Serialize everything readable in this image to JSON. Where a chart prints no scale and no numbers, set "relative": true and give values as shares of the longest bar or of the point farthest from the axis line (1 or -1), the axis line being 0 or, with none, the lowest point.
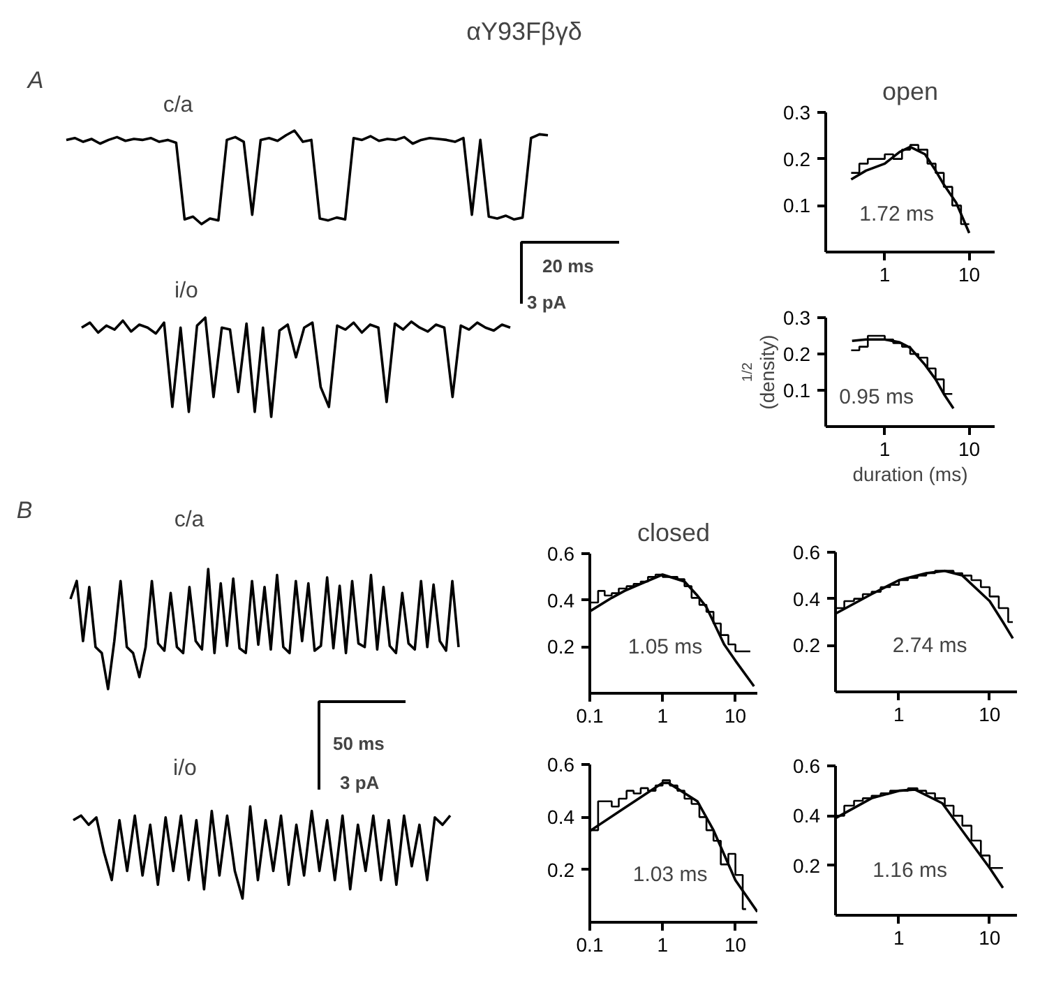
{
  "chart_data": [
    {
      "type": "other",
      "title": "αY93Fβγδ"
    },
    {
      "type": "line",
      "relative": true,
      "annotations": [
        "A",
        "c/a"
      ],
      "categories": [
        null,
        null,
        null,
        null,
        null,
        null,
        null,
        null,
        null,
        null,
        null,
        null,
        null,
        null,
        null,
        null,
        null,
        null,
        null,
        null,
        null,
        null,
        null,
        null,
        null,
        null,
        null,
        null,
        null,
        null,
        null,
        null,
        null,
        null,
        null,
        null,
        null,
        null,
        null,
        null,
        null,
        null,
        null,
        null,
        null,
        null,
        null,
        null,
        null,
        null,
        null,
        null,
        null,
        null,
        null,
        null,
        null,
        null
      ],
      "series": [
        {
          "color": "#000000",
          "values": [
            0.9,
            0.92,
            0.88,
            0.91,
            0.86,
            0.9,
            0.93,
            0.89,
            0.91,
            0.9,
            0.92,
            0.88,
            0.9,
            0.87,
            0.05,
            0.08,
            0.0,
            0.06,
            0.04,
            0.9,
            0.93,
            0.88,
            0.1,
            0.9,
            0.92,
            0.89,
            0.95,
            1.0,
            0.88,
            0.9,
            0.06,
            0.04,
            0.07,
            0.05,
            0.92,
            0.9,
            0.94,
            0.89,
            0.91,
            0.9,
            0.93,
            0.86,
            0.9,
            0.92,
            0.91,
            0.9,
            0.88,
            0.92,
            0.1,
            0.9,
            0.08,
            0.06,
            0.09,
            0.05,
            0.07,
            0.92,
            0.96,
            0.95
          ]
        }
      ]
    },
    {
      "type": "line",
      "title": "open",
      "log": "x",
      "xlim": [
        0.2,
        20
      ],
      "ylim": [
        0,
        0.3
      ],
      "xticks": [
        1,
        10
      ],
      "yticks": [
        0.1,
        0.2,
        0.3
      ],
      "annotations": [
        "1.72 ms"
      ],
      "series": [
        {
          "type": "step",
          "color": "#000000",
          "x": [
            0.4,
            0.5,
            0.63,
            0.8,
            1,
            1.26,
            1.6,
            2,
            2.5,
            3.2,
            4,
            5,
            6.3,
            8,
            10
          ],
          "values": [
            0.17,
            0.19,
            0.2,
            0.2,
            0.21,
            0.2,
            0.22,
            0.23,
            0.22,
            0.19,
            0.17,
            0.14,
            0.1,
            0.06,
            0.06
          ]
        },
        {
          "type": "line",
          "color": "#000000",
          "x": [
            0.4,
            0.6,
            1,
            1.5,
            2,
            3,
            4,
            5,
            7,
            10
          ],
          "values": [
            0.156,
            0.175,
            0.19,
            0.215,
            0.226,
            0.21,
            0.175,
            0.145,
            0.106,
            0.041
          ]
        }
      ]
    },
    {
      "type": "line",
      "relative": true,
      "annotations": [
        "i/o",
        "20 ms",
        "3 pA"
      ],
      "categories": [
        null,
        null,
        null,
        null,
        null,
        null,
        null,
        null,
        null,
        null,
        null,
        null,
        null,
        null,
        null,
        null,
        null,
        null,
        null,
        null,
        null,
        null,
        null,
        null,
        null,
        null,
        null,
        null,
        null,
        null,
        null,
        null,
        null,
        null,
        null,
        null,
        null,
        null,
        null,
        null,
        null,
        null,
        null,
        null,
        null,
        null,
        null,
        null,
        null,
        null,
        null,
        null,
        null
      ],
      "series": [
        {
          "color": "#000000",
          "values": [
            0.9,
            0.95,
            0.85,
            0.92,
            0.88,
            0.97,
            0.86,
            0.93,
            0.9,
            0.84,
            0.95,
            0.1,
            0.9,
            0.05,
            0.92,
            1.0,
            0.2,
            0.9,
            0.88,
            0.25,
            0.94,
            0.05,
            0.9,
            0.0,
            0.87,
            0.93,
            0.6,
            0.9,
            0.95,
            0.3,
            0.1,
            0.92,
            0.88,
            0.95,
            0.85,
            0.93,
            0.9,
            0.15,
            0.94,
            0.88,
            0.96,
            0.9,
            0.86,
            0.93,
            0.9,
            0.2,
            0.92,
            0.88,
            0.95,
            0.9,
            0.87,
            0.93,
            0.9
          ]
        }
      ]
    },
    {
      "type": "line",
      "xlabel": "duration (ms)",
      "ylabel": "(density)$^{1/2}$",
      "log": "x",
      "xlim": [
        0.2,
        20
      ],
      "ylim": [
        0,
        0.3
      ],
      "xticks": [
        1,
        10
      ],
      "yticks": [
        0.1,
        0.2,
        0.3
      ],
      "annotations": [
        "0.95 ms"
      ],
      "series": [
        {
          "type": "step",
          "color": "#000000",
          "x": [
            0.4,
            0.5,
            0.63,
            0.8,
            1,
            1.26,
            1.6,
            2,
            2.5,
            3.2,
            4,
            5,
            6.3
          ],
          "values": [
            0.21,
            0.22,
            0.25,
            0.25,
            0.24,
            0.23,
            0.22,
            0.2,
            0.19,
            0.16,
            0.13,
            0.09,
            0.09
          ]
        },
        {
          "type": "line",
          "color": "#000000",
          "x": [
            0.41,
            0.6,
            1,
            1.5,
            2,
            3,
            4,
            5,
            6.5
          ],
          "values": [
            0.236,
            0.24,
            0.24,
            0.232,
            0.217,
            0.17,
            0.13,
            0.09,
            0.05
          ]
        }
      ]
    },
    {
      "type": "line",
      "relative": true,
      "annotations": [
        "B",
        "c/a"
      ],
      "categories": [
        null,
        null,
        null,
        null,
        null,
        null,
        null,
        null,
        null,
        null,
        null,
        null,
        null,
        null,
        null,
        null,
        null,
        null,
        null,
        null,
        null,
        null,
        null,
        null,
        null,
        null,
        null,
        null,
        null,
        null,
        null,
        null,
        null,
        null,
        null,
        null,
        null,
        null,
        null,
        null,
        null,
        null,
        null,
        null,
        null,
        null,
        null,
        null,
        null,
        null,
        null,
        null,
        null,
        null,
        null,
        null,
        null,
        null,
        null,
        null,
        null,
        null,
        null
      ],
      "series": [
        {
          "color": "#000000",
          "values": [
            0.75,
            0.9,
            0.4,
            0.85,
            0.35,
            0.3,
            0.0,
            0.4,
            0.9,
            0.35,
            0.3,
            0.1,
            0.35,
            0.9,
            0.38,
            0.32,
            0.8,
            0.35,
            0.3,
            0.85,
            0.4,
            0.33,
            1.0,
            0.3,
            0.88,
            0.36,
            0.92,
            0.34,
            0.3,
            0.9,
            0.37,
            0.85,
            0.33,
            0.95,
            0.35,
            0.3,
            0.9,
            0.4,
            0.88,
            0.32,
            0.36,
            0.93,
            0.34,
            0.86,
            0.3,
            0.9,
            0.38,
            0.35,
            0.95,
            0.33,
            0.85,
            0.36,
            0.3,
            0.8,
            0.38,
            0.33,
            0.9,
            0.35,
            0.87,
            0.4,
            0.32,
            0.9,
            0.35
          ]
        }
      ]
    },
    {
      "type": "line",
      "title": "closed",
      "log": "x",
      "xlim": [
        0.1,
        20
      ],
      "ylim": [
        0,
        0.6
      ],
      "xticks": [
        0.1,
        1,
        10
      ],
      "yticks": [
        0.2,
        0.4,
        0.6
      ],
      "annotations": [
        "1.05 ms"
      ],
      "series": [
        {
          "type": "step",
          "color": "#000000",
          "x": [
            0.1,
            0.13,
            0.16,
            0.2,
            0.25,
            0.32,
            0.4,
            0.5,
            0.63,
            0.8,
            1,
            1.26,
            1.6,
            2,
            2.5,
            3.2,
            4,
            5,
            6.3,
            8,
            10,
            12.6,
            16
          ],
          "values": [
            0.39,
            0.44,
            0.42,
            0.43,
            0.45,
            0.46,
            0.47,
            0.48,
            0.5,
            0.51,
            0.5,
            0.5,
            0.49,
            0.46,
            0.41,
            0.38,
            0.35,
            0.3,
            0.25,
            0.21,
            0.18,
            0.18,
            0.18
          ]
        },
        {
          "type": "line",
          "color": "#000000",
          "x": [
            0.1,
            0.2,
            0.3,
            0.5,
            1,
            2,
            3,
            4,
            7,
            10,
            18
          ],
          "values": [
            0.352,
            0.41,
            0.44,
            0.47,
            0.51,
            0.48,
            0.42,
            0.37,
            0.21,
            0.14,
            0.03
          ]
        }
      ]
    },
    {
      "type": "line",
      "log": "x",
      "xlim": [
        0.2,
        20
      ],
      "ylim": [
        0,
        0.6
      ],
      "xticks": [
        1,
        10
      ],
      "yticks": [
        0.2,
        0.4,
        0.6
      ],
      "annotations": [
        "2.74 ms"
      ],
      "series": [
        {
          "type": "step",
          "color": "#000000",
          "x": [
            0.2,
            0.25,
            0.32,
            0.4,
            0.5,
            0.63,
            0.8,
            1,
            1.26,
            1.6,
            2,
            2.5,
            3.2,
            4,
            5,
            6.3,
            8,
            10,
            12.6,
            16,
            18
          ],
          "values": [
            0.36,
            0.39,
            0.4,
            0.42,
            0.43,
            0.45,
            0.46,
            0.48,
            0.49,
            0.5,
            0.51,
            0.52,
            0.52,
            0.51,
            0.5,
            0.48,
            0.45,
            0.41,
            0.36,
            0.3,
            0.3
          ]
        },
        {
          "type": "line",
          "color": "#000000",
          "x": [
            0.2,
            0.5,
            1,
            2,
            3.2,
            5,
            10,
            14,
            18
          ],
          "values": [
            0.336,
            0.42,
            0.48,
            0.51,
            0.52,
            0.5,
            0.39,
            0.3,
            0.23
          ]
        }
      ]
    },
    {
      "type": "line",
      "relative": true,
      "annotations": [
        "i/o",
        "50 ms",
        "3 pA"
      ],
      "categories": [
        null,
        null,
        null,
        null,
        null,
        null,
        null,
        null,
        null,
        null,
        null,
        null,
        null,
        null,
        null,
        null,
        null,
        null,
        null,
        null,
        null,
        null,
        null,
        null,
        null,
        null,
        null,
        null,
        null,
        null,
        null,
        null,
        null,
        null,
        null,
        null,
        null,
        null,
        null,
        null,
        null,
        null,
        null,
        null,
        null,
        null,
        null,
        null,
        null,
        null
      ],
      "series": [
        {
          "color": "#000000",
          "values": [
            0.85,
            0.9,
            0.8,
            0.88,
            0.5,
            0.2,
            0.85,
            0.3,
            0.9,
            0.25,
            0.8,
            0.15,
            0.88,
            0.3,
            0.9,
            0.2,
            0.85,
            0.1,
            0.95,
            0.25,
            0.9,
            0.3,
            0.0,
            1.0,
            0.2,
            0.85,
            0.3,
            0.9,
            0.15,
            0.8,
            0.25,
            0.95,
            0.3,
            0.85,
            0.2,
            0.9,
            0.1,
            0.8,
            0.3,
            0.9,
            0.2,
            0.85,
            0.15,
            0.9,
            0.35,
            0.8,
            0.2,
            0.88,
            0.8,
            0.9
          ]
        }
      ]
    },
    {
      "type": "line",
      "log": "x",
      "xlim": [
        0.1,
        20
      ],
      "ylim": [
        0,
        0.6
      ],
      "xticks": [
        0.1,
        1,
        10
      ],
      "yticks": [
        0.2,
        0.4,
        0.6
      ],
      "annotations": [
        "1.03 ms"
      ],
      "series": [
        {
          "type": "step",
          "color": "#000000",
          "x": [
            0.1,
            0.13,
            0.2,
            0.25,
            0.32,
            0.4,
            0.5,
            0.63,
            0.8,
            1,
            1.26,
            1.6,
            2,
            2.5,
            3.2,
            4,
            5,
            6.3,
            8,
            10,
            12.6,
            14
          ],
          "values": [
            0.35,
            0.46,
            0.44,
            0.47,
            0.5,
            0.49,
            0.51,
            0.5,
            0.52,
            0.54,
            0.52,
            0.5,
            0.47,
            0.45,
            0.4,
            0.35,
            0.31,
            0.22,
            0.26,
            0.18,
            0.05,
            0.05
          ]
        },
        {
          "type": "line",
          "color": "#000000",
          "x": [
            0.1,
            0.3,
            1,
            1.2,
            3,
            5,
            10,
            20
          ],
          "values": [
            0.347,
            0.435,
            0.53,
            0.53,
            0.46,
            0.35,
            0.16,
            0.04
          ]
        }
      ]
    },
    {
      "type": "line",
      "log": "x",
      "xlim": [
        0.2,
        20
      ],
      "ylim": [
        0,
        0.6
      ],
      "xticks": [
        1,
        10
      ],
      "yticks": [
        0.2,
        0.4,
        0.6
      ],
      "annotations": [
        "1.16 ms"
      ],
      "series": [
        {
          "type": "step",
          "color": "#000000",
          "x": [
            0.2,
            0.25,
            0.32,
            0.4,
            0.5,
            0.63,
            0.8,
            1,
            1.26,
            1.6,
            2,
            2.5,
            3.2,
            4,
            5,
            6.3,
            8,
            10,
            12.6,
            14
          ],
          "values": [
            0.4,
            0.44,
            0.46,
            0.47,
            0.48,
            0.49,
            0.5,
            0.5,
            0.51,
            0.5,
            0.49,
            0.47,
            0.44,
            0.4,
            0.36,
            0.3,
            0.24,
            0.19,
            0.19,
            0.19
          ]
        },
        {
          "type": "line",
          "color": "#000000",
          "x": [
            0.2,
            0.5,
            1,
            1.5,
            3,
            6,
            10,
            14
          ],
          "values": [
            0.39,
            0.47,
            0.5,
            0.505,
            0.45,
            0.3,
            0.19,
            0.11
          ]
        }
      ]
    }
  ]
}
